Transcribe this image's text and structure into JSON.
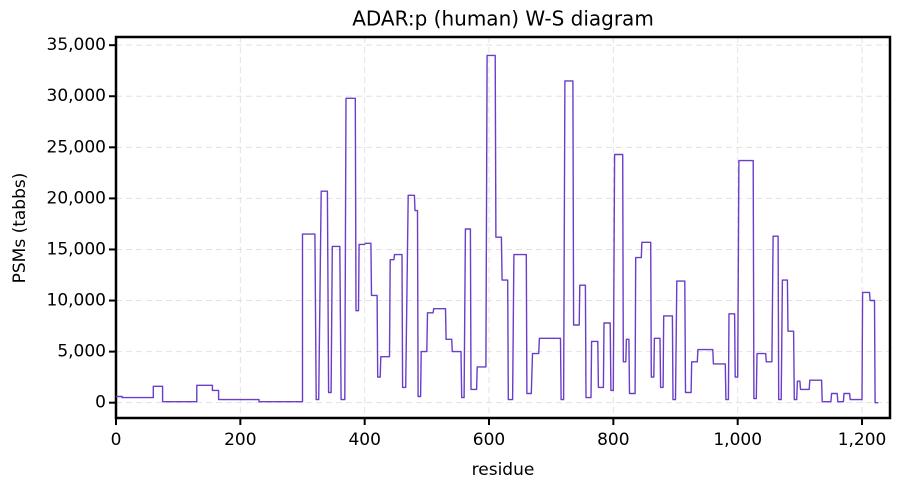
{
  "chart_data": {
    "type": "line",
    "title": "ADAR:p (human) W-S diagram",
    "xlabel": "residue",
    "ylabel": "PSMs (tabbs)",
    "x": [
      0,
      10,
      10,
      60,
      60,
      75,
      75,
      130,
      130,
      155,
      155,
      165,
      165,
      230,
      230,
      300,
      300,
      320,
      322,
      326,
      330,
      340,
      342,
      346,
      348,
      360,
      362,
      368,
      370,
      385,
      386,
      390,
      391,
      400,
      401,
      410,
      411,
      420,
      421,
      425,
      426,
      440,
      441,
      447,
      448,
      460,
      461,
      466,
      470,
      480,
      481,
      485,
      486,
      490,
      491,
      500,
      501,
      510,
      511,
      530,
      531,
      540,
      541,
      555,
      556,
      560,
      562,
      570,
      571,
      580,
      581,
      595,
      597,
      610,
      611,
      620,
      621,
      630,
      631,
      638,
      640,
      660,
      661,
      668,
      670,
      680,
      681,
      715,
      716,
      720,
      722,
      735,
      736,
      745,
      746,
      755,
      756,
      764,
      765,
      775,
      776,
      784,
      785,
      795,
      796,
      800,
      802,
      815,
      816,
      820,
      821,
      825,
      826,
      835,
      836,
      845,
      846,
      860,
      861,
      865,
      866,
      875,
      876,
      880,
      881,
      895,
      896,
      900,
      902,
      915,
      916,
      925,
      926,
      935,
      936,
      960,
      961,
      980,
      981,
      985,
      986,
      995,
      996,
      1000,
      1002,
      1025,
      1026,
      1030,
      1031,
      1045,
      1046,
      1055,
      1057,
      1065,
      1066,
      1070,
      1072,
      1080,
      1081,
      1090,
      1091,
      1095,
      1096,
      1100,
      1101,
      1115,
      1116,
      1135,
      1136,
      1150,
      1151,
      1160,
      1161,
      1170,
      1171,
      1180,
      1181,
      1200,
      1201,
      1212,
      1213,
      1220,
      1221,
      1226
    ],
    "series": [
      {
        "name": "ADAR:p",
        "color": "#6a3ec8",
        "values": [
          600,
          600,
          500,
          500,
          1600,
          1600,
          100,
          100,
          1700,
          1700,
          1200,
          1200,
          300,
          300,
          100,
          100,
          16500,
          16500,
          300,
          300,
          20700,
          20700,
          1000,
          1000,
          15300,
          15300,
          300,
          300,
          29800,
          29800,
          9000,
          9000,
          15500,
          15500,
          15600,
          15600,
          10500,
          10500,
          2500,
          2500,
          4500,
          4500,
          14000,
          14000,
          14500,
          14500,
          1500,
          1500,
          20300,
          20300,
          18800,
          18800,
          600,
          600,
          5000,
          5000,
          8800,
          8800,
          9200,
          9200,
          6200,
          6200,
          5000,
          5000,
          500,
          500,
          17000,
          17000,
          1300,
          1300,
          3500,
          3500,
          34000,
          34000,
          16200,
          16200,
          12000,
          12000,
          300,
          300,
          14500,
          14500,
          900,
          900,
          4800,
          4800,
          6300,
          6300,
          300,
          300,
          31500,
          31500,
          7600,
          7600,
          11500,
          11500,
          500,
          500,
          6000,
          6000,
          1500,
          1500,
          7800,
          7800,
          1200,
          1200,
          24300,
          24300,
          4000,
          4000,
          6200,
          6200,
          900,
          900,
          14200,
          14200,
          15700,
          15700,
          2500,
          2500,
          6300,
          6300,
          1500,
          1500,
          8500,
          8500,
          300,
          300,
          11900,
          11900,
          1000,
          1000,
          4000,
          4000,
          5200,
          5200,
          3800,
          3800,
          300,
          300,
          8700,
          8700,
          2500,
          2500,
          23700,
          23700,
          400,
          400,
          4800,
          4800,
          4000,
          4000,
          16300,
          16300,
          300,
          300,
          12000,
          12000,
          7000,
          7000,
          300,
          300,
          2100,
          2100,
          1300,
          1300,
          2200,
          2200,
          100,
          100,
          900,
          900,
          100,
          100,
          900,
          900,
          300,
          300,
          10800,
          10800,
          10000,
          10000,
          0,
          0
        ]
      }
    ],
    "xlim": [
      0,
      1245
    ],
    "xticks": [
      0,
      200,
      400,
      600,
      800,
      {
        "value": 1000,
        "label": "1,000"
      },
      {
        "value": 1200,
        "label": "1,200"
      }
    ],
    "ylim": [
      -1500,
      35800
    ],
    "yticks": [
      0,
      {
        "value": 5000,
        "label": "5,000"
      },
      {
        "value": 10000,
        "label": "10,000"
      },
      {
        "value": 15000,
        "label": "15,000"
      },
      {
        "value": 20000,
        "label": "20,000"
      },
      {
        "value": 25000,
        "label": "25,000"
      },
      {
        "value": 30000,
        "label": "30,000"
      },
      {
        "value": 35000,
        "label": "35,000"
      }
    ],
    "grid": true
  }
}
